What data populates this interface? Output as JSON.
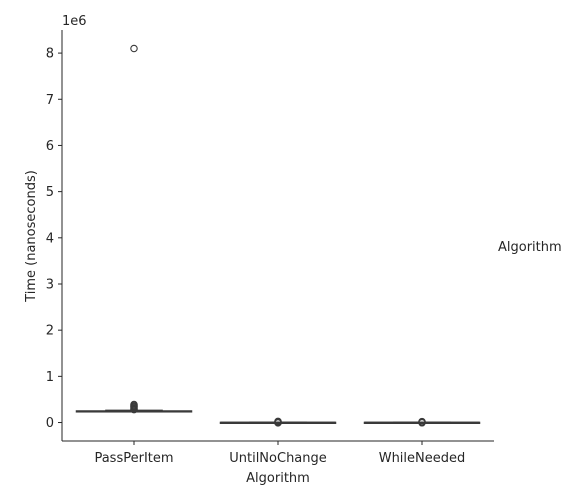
{
  "chart_data": {
    "type": "box",
    "xlabel": "Algorithm",
    "ylabel": "Time (nanoseconds)",
    "offset_text": "1e6",
    "y_scale": 1000000,
    "ylim": [
      -400000,
      8500000
    ],
    "yticks": [
      0,
      1,
      2,
      3,
      4,
      5,
      6,
      7,
      8
    ],
    "categories": [
      "PassPerItem",
      "UntilNoChange",
      "WhileNeeded"
    ],
    "legend_title": "Algorithm",
    "grid": false,
    "box_color": "#3a3a3a",
    "boxes": [
      {
        "category": "PassPerItem",
        "whislo": 230000,
        "q1": 240000,
        "median": 245000,
        "q3": 252000,
        "whishi": 265000,
        "fliers": [
          8100000,
          390000,
          370000,
          350000,
          330000,
          310000,
          290000,
          280000
        ]
      },
      {
        "category": "UntilNoChange",
        "whislo": 2000,
        "q1": 3000,
        "median": 3500,
        "q3": 4000,
        "whishi": 5500,
        "fliers": [
          25000,
          18000,
          12000,
          -8000
        ]
      },
      {
        "category": "WhileNeeded",
        "whislo": 2000,
        "q1": 3000,
        "median": 3500,
        "q3": 4000,
        "whishi": 5500,
        "fliers": [
          20000,
          14000,
          9000,
          -6000
        ]
      }
    ]
  }
}
